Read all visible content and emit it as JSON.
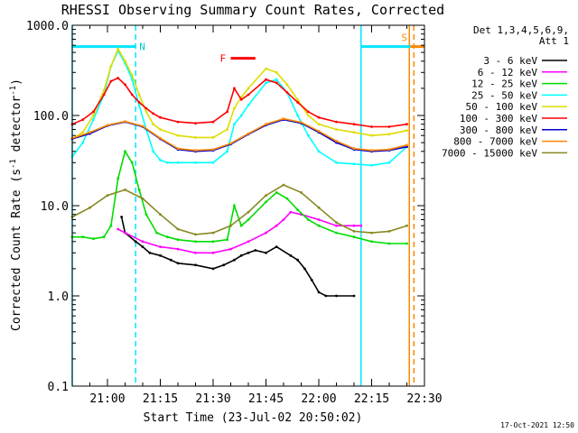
{
  "chart_data": {
    "type": "line",
    "title": "RHESSI Observing Summary Count Rates, Corrected",
    "xlabel": "Start Time (23-Jul-02 20:50:02)",
    "ylabel": "Corrected Count Rate (s",
    "ylabel_sup": "-1",
    "ylabel_mid": " detector",
    "ylabel_tail": ")",
    "yscale": "log",
    "xlim": [
      0,
      100
    ],
    "ylim": [
      0.1,
      1000
    ],
    "grid": false,
    "legend_position": "right",
    "detector_label": "Det 1,3,4,5,6,9,",
    "attenuator_label": "Att 1",
    "timestamp": "17-Oct-2021 12:50",
    "x_ticks": [
      {
        "value": 10,
        "label": "21:00"
      },
      {
        "value": 25,
        "label": "21:15"
      },
      {
        "value": 40,
        "label": "21:30"
      },
      {
        "value": 55,
        "label": "21:45"
      },
      {
        "value": 70,
        "label": "22:00"
      },
      {
        "value": 85,
        "label": "22:15"
      },
      {
        "value": 100,
        "label": "22:30"
      }
    ],
    "y_ticks": [
      {
        "value": 0.1,
        "label": "0.1"
      },
      {
        "value": 1,
        "label": "1.0"
      },
      {
        "value": 10,
        "label": "10.0"
      },
      {
        "value": 100,
        "label": "100.0"
      },
      {
        "value": 1000,
        "label": "1000.0"
      }
    ],
    "flags": {
      "night": [
        {
          "label": "N",
          "x0": 0,
          "x1": 18,
          "y": 580
        },
        {
          "label": "",
          "x0": 82,
          "x1": 96,
          "y": 580
        }
      ],
      "flare": [
        {
          "label": "F",
          "x0": 45,
          "x1": 52,
          "y": 430
        }
      ],
      "saa": [
        {
          "label": "S",
          "x0": 96,
          "x1": 100,
          "y": 580
        }
      ],
      "cyan_lines": [
        0,
        82
      ],
      "cyan_dashed": [
        18
      ],
      "orange_lines": [
        95.7
      ],
      "orange_dashed": [
        97
      ]
    },
    "series": [
      {
        "name": "3 - 6 keV",
        "color": "#000000",
        "x": [
          14,
          15,
          18,
          20,
          22,
          25,
          28,
          30,
          35,
          40,
          43,
          46,
          48,
          50,
          52,
          55,
          58,
          62,
          64,
          66,
          68,
          70,
          72,
          75,
          80
        ],
        "y": [
          7.5,
          5.0,
          4.0,
          3.5,
          3.0,
          2.8,
          2.5,
          2.3,
          2.2,
          2.0,
          2.2,
          2.5,
          2.8,
          3.0,
          3.2,
          3.0,
          3.5,
          2.8,
          2.5,
          2.0,
          1.5,
          1.1,
          1.0,
          1.0,
          1.0
        ]
      },
      {
        "name": "6 - 12 keV",
        "color": "#ff00ff",
        "x": [
          13,
          15,
          20,
          25,
          30,
          35,
          40,
          45,
          50,
          55,
          58,
          60,
          62,
          65,
          70,
          75,
          80,
          82
        ],
        "y": [
          5.5,
          5.0,
          4.0,
          3.5,
          3.3,
          3.0,
          3.0,
          3.3,
          4.0,
          5.0,
          6.0,
          7.0,
          8.5,
          8.0,
          7.0,
          6.0,
          6.0,
          6.0
        ]
      },
      {
        "name": "12 - 25 keV",
        "color": "#00dd00",
        "x": [
          0,
          3,
          6,
          9,
          11,
          13,
          15,
          17,
          19,
          21,
          24,
          27,
          30,
          35,
          40,
          44,
          46,
          48,
          50,
          55,
          58,
          61,
          64,
          67,
          70,
          75,
          80,
          85,
          90,
          95
        ],
        "y": [
          4.5,
          4.5,
          4.3,
          4.5,
          6.0,
          20.0,
          40.0,
          30.0,
          15.0,
          8.0,
          5.0,
          4.5,
          4.2,
          4.0,
          4.0,
          4.2,
          10.0,
          6.0,
          7.0,
          11.0,
          14.0,
          12.0,
          9.0,
          7.0,
          6.0,
          5.0,
          4.5,
          4.0,
          3.8,
          3.8
        ]
      },
      {
        "name": "25 - 50 keV",
        "color": "#00ffff",
        "x": [
          0,
          3,
          6,
          9,
          11,
          13,
          15,
          17,
          19,
          21,
          23,
          25,
          27,
          30,
          35,
          40,
          44,
          46,
          48,
          50,
          55,
          58,
          61,
          64,
          67,
          70,
          75,
          80,
          85,
          90,
          95
        ],
        "y": [
          35,
          50,
          90,
          170,
          350,
          520,
          380,
          250,
          130,
          70,
          40,
          32,
          30,
          30,
          30,
          30,
          40,
          80,
          100,
          130,
          230,
          250,
          180,
          100,
          60,
          40,
          30,
          29,
          28,
          30,
          45
        ]
      },
      {
        "name": "50 - 100 keV",
        "color": "#dddd00",
        "x": [
          0,
          3,
          6,
          9,
          11,
          13,
          15,
          17,
          19,
          21,
          23,
          25,
          30,
          35,
          40,
          44,
          46,
          48,
          50,
          55,
          58,
          61,
          64,
          67,
          70,
          75,
          80,
          85,
          90,
          95
        ],
        "y": [
          55,
          65,
          100,
          190,
          350,
          550,
          400,
          280,
          170,
          110,
          80,
          70,
          60,
          57,
          57,
          70,
          120,
          160,
          200,
          330,
          300,
          220,
          150,
          100,
          80,
          70,
          65,
          60,
          62,
          68
        ]
      },
      {
        "name": "100 - 300 keV",
        "color": "#ff0000",
        "x": [
          0,
          3,
          6,
          9,
          11,
          13,
          15,
          17,
          19,
          21,
          23,
          25,
          30,
          35,
          40,
          44,
          46,
          48,
          50,
          55,
          58,
          61,
          64,
          67,
          70,
          75,
          80,
          85,
          90,
          95
        ],
        "y": [
          80,
          90,
          110,
          170,
          240,
          260,
          220,
          170,
          140,
          120,
          105,
          95,
          85,
          82,
          85,
          110,
          200,
          150,
          170,
          250,
          230,
          180,
          140,
          110,
          95,
          85,
          80,
          75,
          75,
          80
        ]
      },
      {
        "name": "300 - 800 keV",
        "color": "#0000cc",
        "x": [
          0,
          5,
          10,
          15,
          20,
          25,
          30,
          35,
          40,
          45,
          50,
          55,
          60,
          65,
          70,
          75,
          80,
          85,
          90,
          95
        ],
        "y": [
          55,
          63,
          77,
          85,
          75,
          55,
          42,
          40,
          41,
          48,
          62,
          78,
          90,
          82,
          65,
          50,
          42,
          40,
          41,
          45
        ]
      },
      {
        "name": "800 - 7000 keV",
        "color": "#ff8800",
        "x": [
          0,
          5,
          10,
          15,
          20,
          25,
          30,
          35,
          40,
          45,
          50,
          55,
          60,
          65,
          70,
          75,
          80,
          85,
          90,
          95
        ],
        "y": [
          56,
          65,
          78,
          86,
          76,
          56,
          43,
          41,
          42,
          49,
          63,
          80,
          92,
          84,
          67,
          52,
          43,
          41,
          42,
          47
        ]
      },
      {
        "name": "7000 - 15000 keV",
        "color": "#888822",
        "x": [
          0,
          5,
          10,
          15,
          20,
          25,
          30,
          35,
          40,
          45,
          50,
          55,
          60,
          65,
          70,
          75,
          80,
          85,
          90,
          95
        ],
        "y": [
          7.5,
          9.5,
          13.0,
          15.0,
          12.0,
          8.0,
          5.5,
          4.8,
          5.0,
          6.0,
          8.5,
          13.0,
          17.0,
          14.0,
          9.5,
          6.5,
          5.2,
          5.0,
          5.2,
          6.0
        ]
      }
    ]
  }
}
